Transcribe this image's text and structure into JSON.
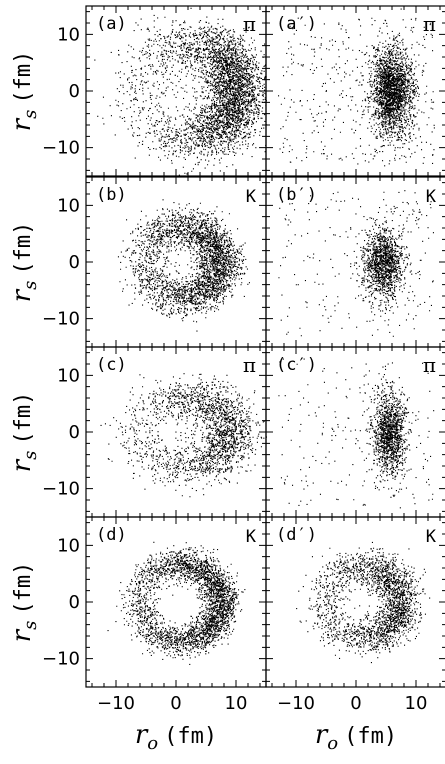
{
  "chart_data": {
    "type": "scatter",
    "layout": "4 rows x 2 columns of emission-source scatter panels",
    "xlabel": {
      "symbol": "r",
      "subscript": "o",
      "unit": "(fm)"
    },
    "ylabel": {
      "symbol": "r",
      "subscript": "s",
      "unit": "(fm)"
    },
    "xlim": [
      -15,
      15
    ],
    "ylim": [
      -15,
      15
    ],
    "x_ticks": [
      -10,
      0,
      10
    ],
    "x_tick_labels": [
      "−10",
      "0",
      "10"
    ],
    "y_ticks": [
      -10,
      0,
      10
    ],
    "y_tick_labels": [
      "−10",
      "0",
      "10"
    ],
    "grid": false,
    "marker": {
      "color": "#000000",
      "size": 1.1
    },
    "panels": [
      {
        "label": "(a)",
        "particle": "π",
        "density": 3800,
        "source": {
          "shape": "shell",
          "radius": 8.5,
          "spread": 4.5,
          "shift": 4.5,
          "bias": 1.6,
          "aspect": 1.05
        }
      },
      {
        "label": "(a′)",
        "particle": "π",
        "density": 2600,
        "source": {
          "shape": "blob",
          "radius": 4.0,
          "spread": 3.2,
          "shift": 6.0,
          "bias": 0.0,
          "aspect": 1.75
        }
      },
      {
        "label": "(b)",
        "particle": "K",
        "density": 3000,
        "source": {
          "shape": "shell",
          "radius": 6.5,
          "spread": 3.2,
          "shift": 2.8,
          "bias": 1.0,
          "aspect": 1.0
        }
      },
      {
        "label": "(b′)",
        "particle": "K",
        "density": 1600,
        "source": {
          "shape": "blob",
          "radius": 3.5,
          "spread": 3.0,
          "shift": 4.5,
          "bias": 0.0,
          "aspect": 1.7
        }
      },
      {
        "label": "(c)",
        "particle": "π",
        "density": 2000,
        "source": {
          "shape": "shell",
          "radius": 6.5,
          "spread": 3.5,
          "shift": 3.0,
          "bias": 1.2,
          "aspect": 1.25
        }
      },
      {
        "label": "(c′)",
        "particle": "π",
        "density": 1500,
        "source": {
          "shape": "blob",
          "radius": 3.0,
          "spread": 2.6,
          "shift": 5.5,
          "bias": 0.0,
          "aspect": 2.2
        }
      },
      {
        "label": "(d)",
        "particle": "K",
        "density": 3000,
        "source": {
          "shape": "shell",
          "radius": 7.0,
          "spread": 2.4,
          "shift": 1.8,
          "bias": 0.8,
          "aspect": 1.0
        }
      },
      {
        "label": "(d′)",
        "particle": "K",
        "density": 2200,
        "source": {
          "shape": "shell",
          "radius": 6.5,
          "spread": 3.0,
          "shift": 2.5,
          "bias": 1.2,
          "aspect": 1.0
        }
      }
    ]
  }
}
